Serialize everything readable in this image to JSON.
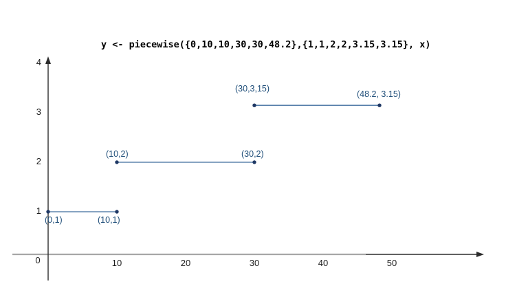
{
  "chart_data": {
    "type": "line",
    "subtype": "piecewise-step-segments",
    "title": "y <- piecewise({0,10,10,30,30,48.2},{1,1,2,2,3.15,3.15}, x)",
    "xlabel": "",
    "ylabel": "",
    "xlim": [
      0,
      63
    ],
    "ylim": [
      0,
      4.2
    ],
    "grid": false,
    "x_ticks": [
      0,
      10,
      20,
      30,
      40,
      50
    ],
    "y_ticks": [
      1,
      2,
      3,
      4
    ],
    "segments": [
      {
        "x1": 0,
        "y1": 1,
        "x2": 10,
        "y2": 1,
        "labels": [
          {
            "text": "(0,1)",
            "x": 0,
            "y": 1,
            "dx": -5,
            "dy": 5
          },
          {
            "text": "(10,1)",
            "x": 10,
            "y": 1,
            "dx": -28,
            "dy": 5
          }
        ]
      },
      {
        "x1": 10,
        "y1": 2,
        "x2": 30,
        "y2": 2,
        "labels": [
          {
            "text": "(10,2)",
            "x": 10,
            "y": 2,
            "dx": -16,
            "dy": -19
          },
          {
            "text": "(30,2)",
            "x": 30,
            "y": 2,
            "dx": -19,
            "dy": -19
          }
        ]
      },
      {
        "x1": 30,
        "y1": 3.15,
        "x2": 48.2,
        "y2": 3.15,
        "labels": [
          {
            "text": "(30,3,15)",
            "x": 30,
            "y": 3.15,
            "dx": -28,
            "dy": -31
          },
          {
            "text": "(48.2, 3.15)",
            "x": 48.2,
            "y": 3.15,
            "dx": -33,
            "dy": -23
          }
        ]
      }
    ],
    "colors": {
      "segment": "#3e6c9e",
      "point": "#1f3864",
      "label": "#1f4e79",
      "axis": "#2b2b2b",
      "axis_gray": "#a6a6a6",
      "title": "#000000",
      "background": "#ffffff"
    }
  }
}
